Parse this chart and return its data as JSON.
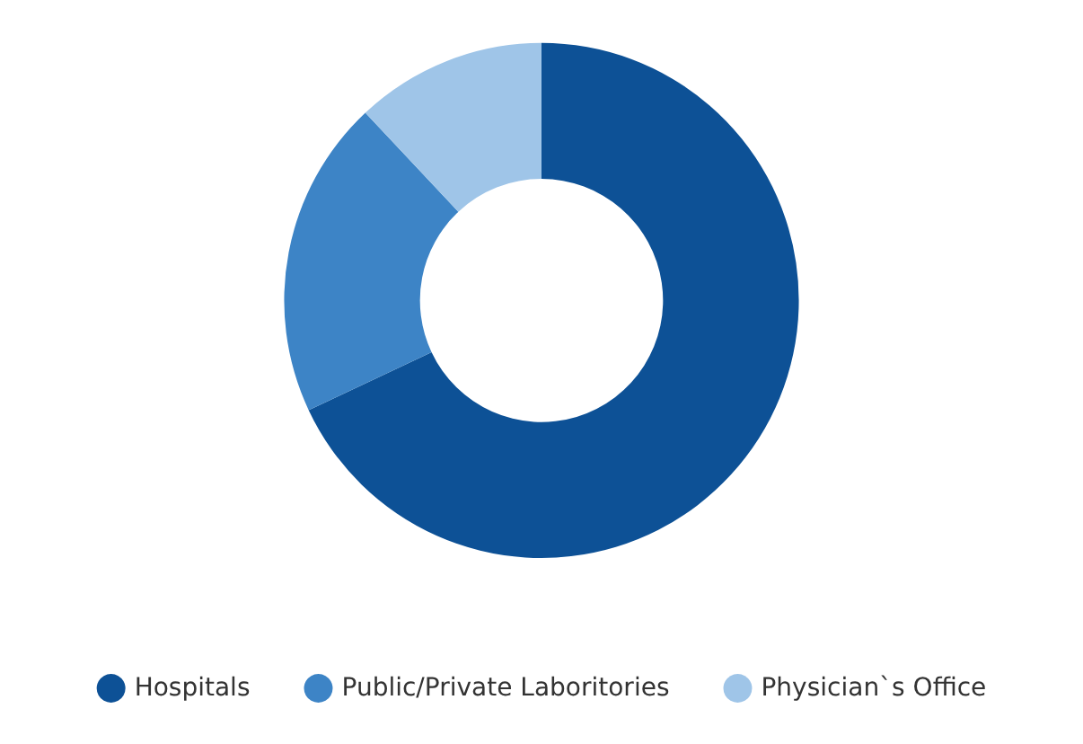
{
  "chart_data": {
    "type": "donut",
    "categories": [
      "Hospitals",
      "Public/Private Laboritories",
      "Physician`s Office"
    ],
    "values": [
      68,
      20,
      12
    ],
    "colors": [
      "#0d5196",
      "#3d84c6",
      "#9fc5e8"
    ],
    "legend": "bottom"
  }
}
